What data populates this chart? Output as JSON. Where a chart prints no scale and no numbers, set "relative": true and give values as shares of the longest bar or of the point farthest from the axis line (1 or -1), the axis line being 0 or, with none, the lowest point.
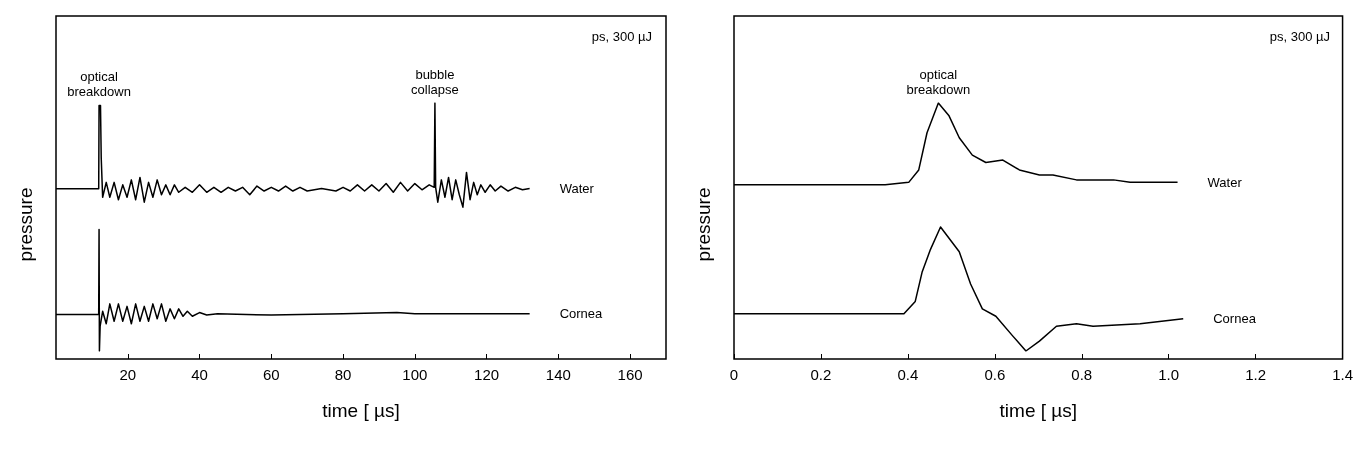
{
  "chart_data": [
    {
      "type": "line",
      "relative": true,
      "xlabel": "time [ µs]",
      "ylabel": "pressure",
      "xlim": [
        0,
        170
      ],
      "xticks": [
        20,
        40,
        60,
        80,
        100,
        120,
        140,
        160
      ],
      "grid": false,
      "legend": false,
      "marker": "none",
      "line_style": "solid",
      "annotations": [
        {
          "text": "optical\nbreakdown",
          "x": 12,
          "y": 0.99
        },
        {
          "text": "bubble\ncollapse",
          "x": 105.6,
          "y": 1.0
        },
        "ps, 300 µJ"
      ],
      "series": [
        {
          "name": "Water",
          "color": "#000000",
          "x": [
            0,
            11.9,
            12.0,
            12.4,
            12.6,
            13.0,
            14,
            15,
            16.2,
            17.4,
            18.6,
            19.8,
            21,
            22.2,
            23.4,
            24.6,
            25.8,
            27,
            28.2,
            29.4,
            30.6,
            31.8,
            33,
            34.2,
            36,
            38,
            40,
            42,
            44,
            46,
            48,
            50,
            52,
            54,
            56,
            58,
            60,
            62,
            64,
            66,
            68,
            70,
            74,
            78,
            80,
            82,
            84,
            86,
            88,
            90,
            92,
            94,
            96,
            98,
            100,
            102,
            104,
            105.4,
            105.6,
            105.8,
            106.4,
            107.4,
            108.4,
            109.4,
            110.4,
            111.4,
            112.4,
            113.4,
            114.4,
            115.4,
            116.4,
            117.4,
            118.4,
            119.6,
            121,
            122.4,
            124,
            126,
            128,
            130,
            132
          ],
          "values": [
            0.654,
            0.654,
            0.99,
            0.99,
            0.78,
            0.62,
            0.68,
            0.62,
            0.68,
            0.61,
            0.67,
            0.62,
            0.69,
            0.61,
            0.7,
            0.6,
            0.68,
            0.62,
            0.69,
            0.63,
            0.67,
            0.63,
            0.67,
            0.64,
            0.66,
            0.64,
            0.67,
            0.64,
            0.66,
            0.64,
            0.66,
            0.645,
            0.66,
            0.63,
            0.665,
            0.645,
            0.66,
            0.645,
            0.665,
            0.645,
            0.66,
            0.645,
            0.655,
            0.645,
            0.66,
            0.645,
            0.67,
            0.645,
            0.67,
            0.645,
            0.675,
            0.64,
            0.68,
            0.645,
            0.675,
            0.65,
            0.67,
            0.66,
            1.0,
            0.66,
            0.6,
            0.69,
            0.62,
            0.7,
            0.61,
            0.69,
            0.63,
            0.58,
            0.72,
            0.61,
            0.68,
            0.63,
            0.67,
            0.64,
            0.67,
            0.645,
            0.665,
            0.645,
            0.66,
            0.65,
            0.655
          ]
        },
        {
          "name": "Cornea",
          "color": "#000000",
          "x": [
            0,
            11.9,
            12.0,
            12.1,
            12.3,
            13,
            14,
            15,
            16.2,
            17.4,
            18.6,
            19.8,
            21,
            22.2,
            23.4,
            24.6,
            25.8,
            27,
            28.2,
            29.4,
            30.6,
            31.8,
            33,
            34.2,
            35.4,
            36.6,
            38,
            40,
            42,
            45,
            60,
            80,
            95,
            100,
            132
          ],
          "values": [
            0.147,
            0.147,
            0.49,
            0,
            0.1,
            0.16,
            0.11,
            0.19,
            0.12,
            0.19,
            0.12,
            0.18,
            0.11,
            0.19,
            0.12,
            0.18,
            0.12,
            0.19,
            0.13,
            0.19,
            0.12,
            0.17,
            0.13,
            0.17,
            0.14,
            0.16,
            0.14,
            0.155,
            0.145,
            0.15,
            0.145,
            0.15,
            0.155,
            0.15,
            0.15
          ]
        }
      ]
    },
    {
      "type": "line",
      "relative": true,
      "xlabel": "time [ µs]",
      "ylabel": "pressure",
      "xlim": [
        0,
        1.4
      ],
      "xticks": [
        0,
        0.2,
        0.4,
        0.6,
        0.8,
        {
          "value": 1,
          "label": "1.0"
        },
        1.2,
        1.4
      ],
      "grid": false,
      "legend": false,
      "marker": "none",
      "line_style": "solid",
      "annotations": [
        {
          "text": "optical\nbreakdown",
          "x": 0.469,
          "y": 1.0
        },
        "ps, 300 µJ"
      ],
      "series": [
        {
          "name": "Water",
          "color": "#000000",
          "x": [
            0,
            0.347,
            0.401,
            0.424,
            0.443,
            0.469,
            0.493,
            0.517,
            0.547,
            0.578,
            0.617,
            0.655,
            0.701,
            0.732,
            0.786,
            0.871,
            0.909,
            1.018
          ],
          "values": [
            0.67,
            0.67,
            0.68,
            0.73,
            0.88,
            1.0,
            0.95,
            0.86,
            0.79,
            0.76,
            0.77,
            0.73,
            0.71,
            0.71,
            0.69,
            0.69,
            0.68,
            0.68
          ]
        },
        {
          "name": "Cornea",
          "color": "#000000",
          "x": [
            0,
            0.39,
            0.416,
            0.432,
            0.451,
            0.474,
            0.517,
            0.543,
            0.57,
            0.601,
            0.64,
            0.67,
            0.701,
            0.74,
            0.786,
            0.824,
            0.932,
            1.031
          ],
          "values": [
            0.15,
            0.15,
            0.2,
            0.32,
            0.41,
            0.5,
            0.4,
            0.27,
            0.17,
            0.14,
            0.06,
            0,
            0.04,
            0.1,
            0.11,
            0.1,
            0.11,
            0.13
          ]
        }
      ]
    }
  ]
}
